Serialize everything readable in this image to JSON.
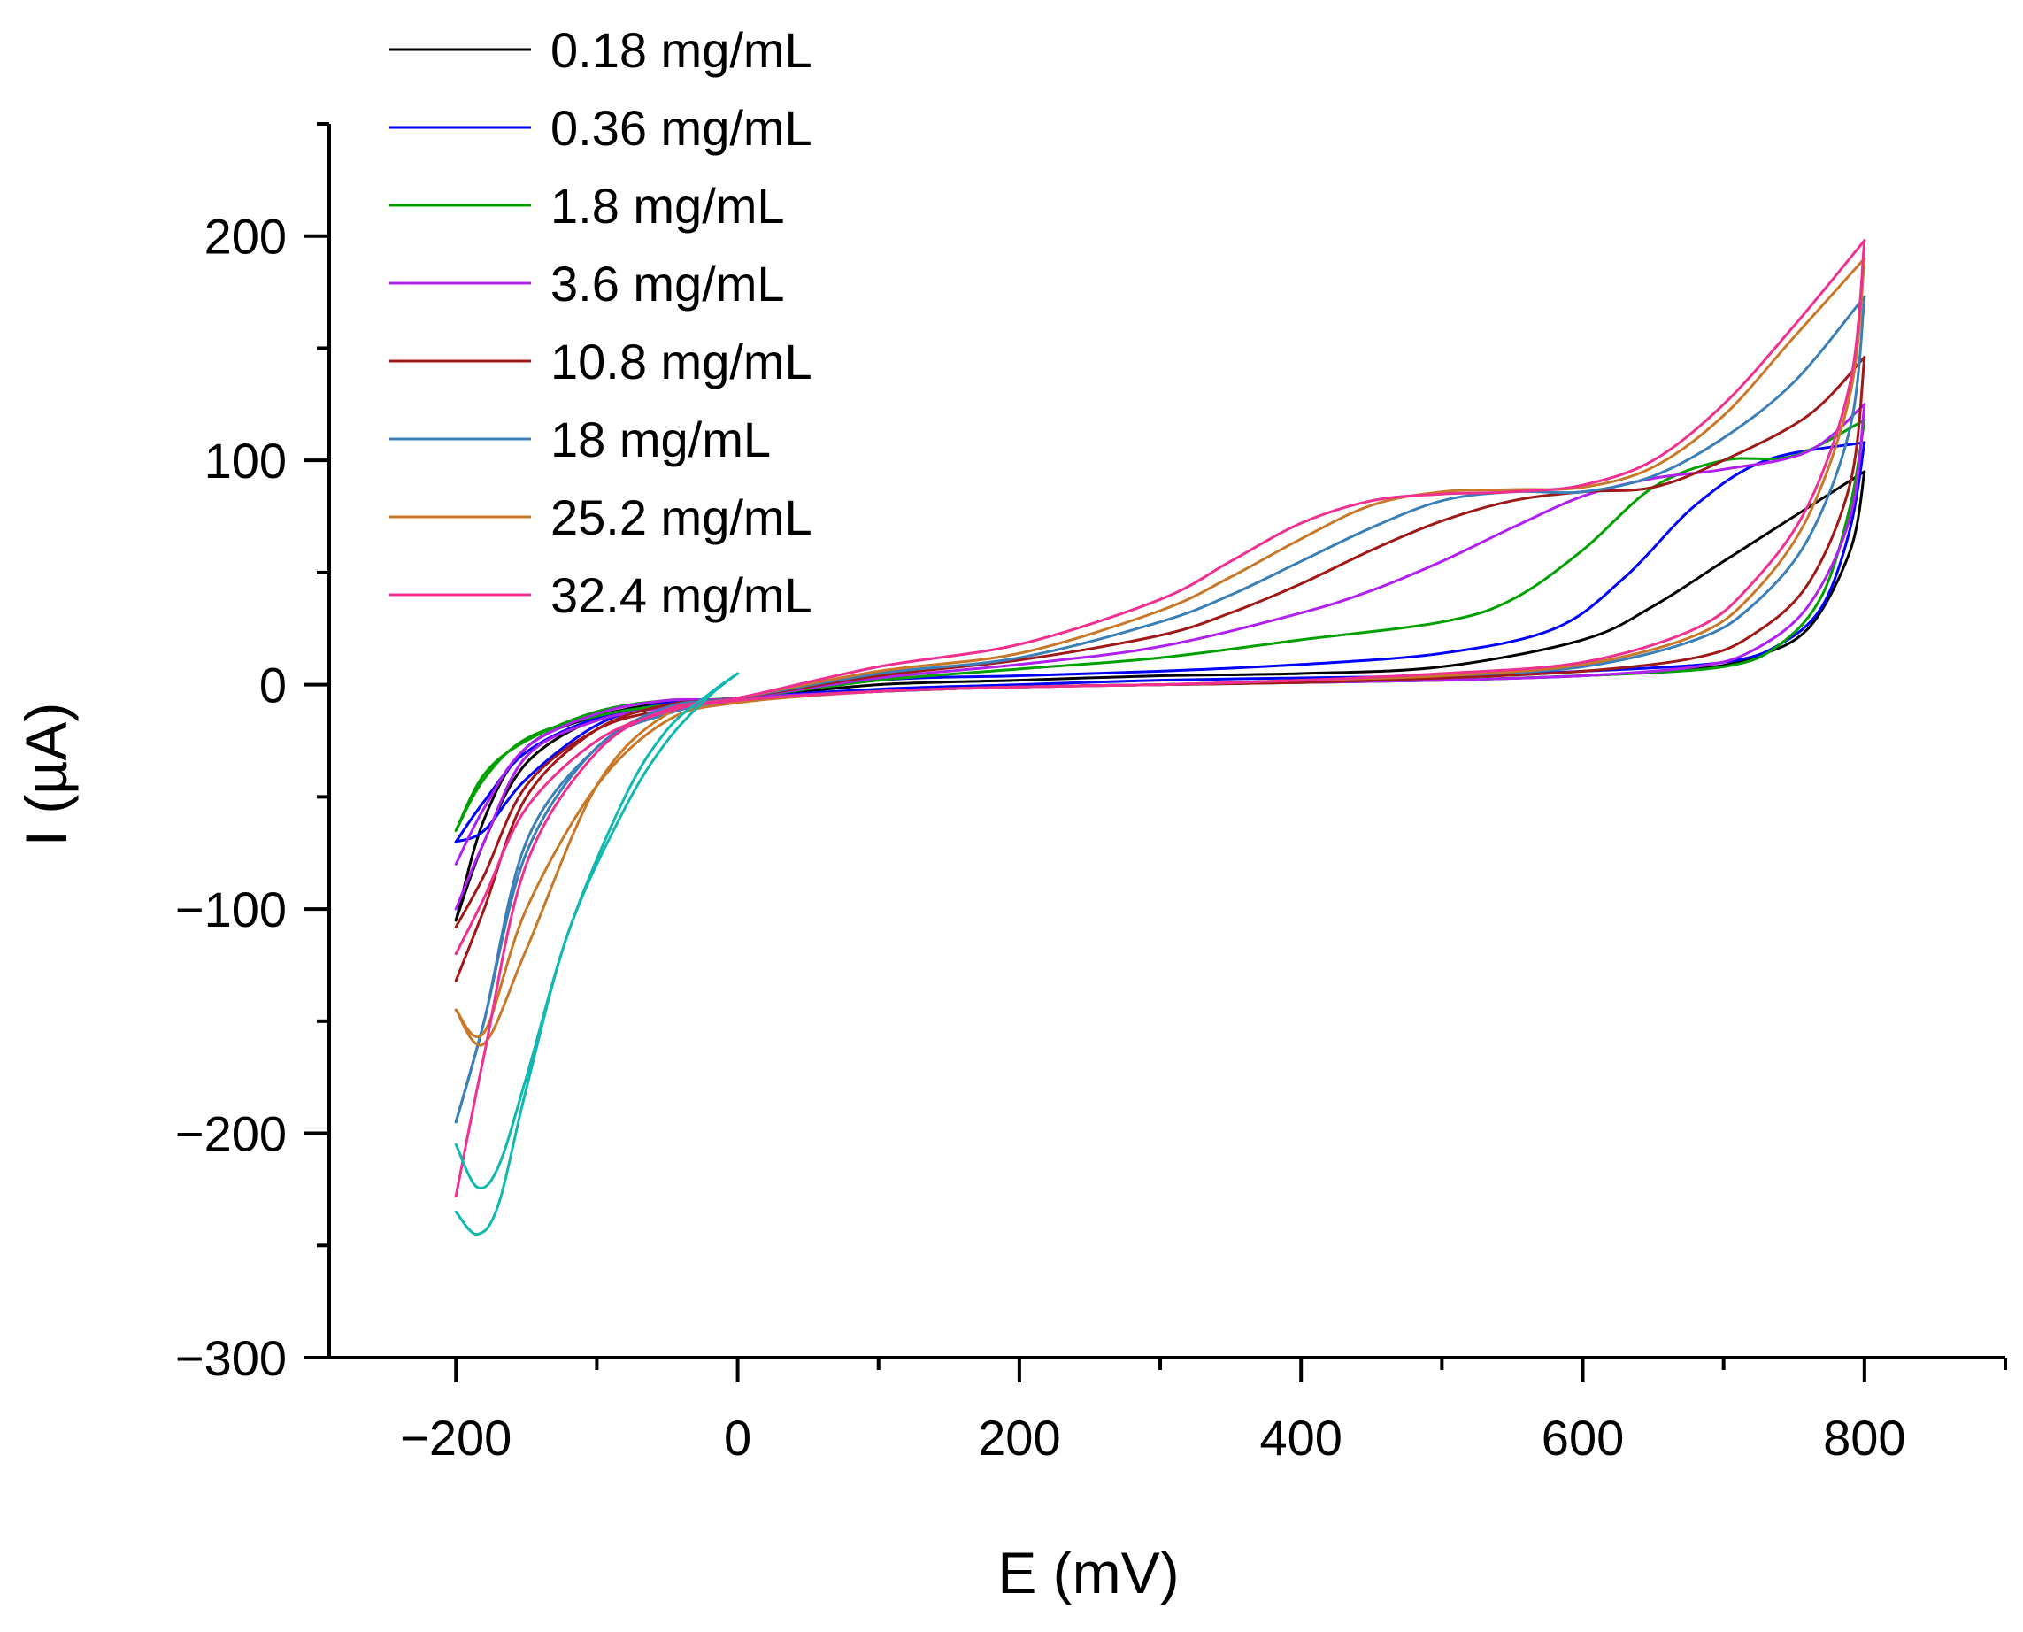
{
  "chart_data": {
    "type": "line",
    "title": "",
    "xlabel": "E (mV)",
    "ylabel": "I (µA)",
    "xlim": [
      -290,
      900
    ],
    "ylim": [
      -300,
      250
    ],
    "x_ticks": [
      -200,
      0,
      200,
      400,
      600,
      800
    ],
    "x_tick_labels": [
      "−200",
      "0",
      "200",
      "400",
      "600",
      "800"
    ],
    "y_ticks": [
      -300,
      -200,
      -100,
      0,
      100,
      200
    ],
    "y_tick_labels": [
      "−300",
      "−200",
      "−100",
      "0",
      "100",
      "200"
    ],
    "grid": false,
    "legend_position": "top-left",
    "series": [
      {
        "name": "0.18 mg/mL",
        "color": "#000000",
        "forward": [
          [
            -200,
            -105
          ],
          [
            -180,
            -70
          ],
          [
            -150,
            -35
          ],
          [
            -100,
            -15
          ],
          [
            -50,
            -8
          ],
          [
            0,
            -6
          ],
          [
            100,
            0
          ],
          [
            200,
            2
          ],
          [
            300,
            4
          ],
          [
            400,
            5
          ],
          [
            500,
            8
          ],
          [
            600,
            20
          ],
          [
            650,
            35
          ],
          [
            700,
            55
          ],
          [
            750,
            75
          ],
          [
            800,
            95
          ]
        ],
        "reverse": [
          [
            800,
            95
          ],
          [
            790,
            60
          ],
          [
            760,
            25
          ],
          [
            720,
            12
          ],
          [
            680,
            7
          ],
          [
            600,
            4
          ],
          [
            500,
            2
          ],
          [
            400,
            1
          ],
          [
            300,
            0
          ],
          [
            200,
            -1
          ],
          [
            100,
            -3
          ],
          [
            0,
            -6
          ],
          [
            -50,
            -9
          ],
          [
            -100,
            -14
          ],
          [
            -150,
            -28
          ],
          [
            -180,
            -60
          ],
          [
            -200,
            -105
          ]
        ]
      },
      {
        "name": "0.36 mg/mL",
        "color": "#0000ff",
        "forward": [
          [
            -200,
            -70
          ],
          [
            -180,
            -65
          ],
          [
            -150,
            -42
          ],
          [
            -100,
            -18
          ],
          [
            -50,
            -8
          ],
          [
            0,
            -6
          ],
          [
            100,
            2
          ],
          [
            200,
            4
          ],
          [
            300,
            6
          ],
          [
            400,
            9
          ],
          [
            500,
            14
          ],
          [
            580,
            25
          ],
          [
            630,
            48
          ],
          [
            680,
            80
          ],
          [
            730,
            100
          ],
          [
            800,
            108
          ]
        ],
        "reverse": [
          [
            800,
            108
          ],
          [
            790,
            70
          ],
          [
            770,
            35
          ],
          [
            740,
            18
          ],
          [
            700,
            10
          ],
          [
            600,
            6
          ],
          [
            500,
            4
          ],
          [
            400,
            3
          ],
          [
            300,
            2
          ],
          [
            200,
            0
          ],
          [
            100,
            -2
          ],
          [
            0,
            -6
          ],
          [
            -50,
            -10
          ],
          [
            -100,
            -15
          ],
          [
            -150,
            -30
          ],
          [
            -180,
            -52
          ],
          [
            -200,
            -70
          ]
        ]
      },
      {
        "name": "1.8 mg/mL",
        "color": "#00a000",
        "forward": [
          [
            -200,
            -65
          ],
          [
            -180,
            -40
          ],
          [
            -150,
            -25
          ],
          [
            -100,
            -12
          ],
          [
            -50,
            -7
          ],
          [
            0,
            -6
          ],
          [
            100,
            2
          ],
          [
            200,
            7
          ],
          [
            300,
            12
          ],
          [
            400,
            20
          ],
          [
            500,
            28
          ],
          [
            550,
            38
          ],
          [
            600,
            60
          ],
          [
            650,
            88
          ],
          [
            700,
            100
          ],
          [
            750,
            102
          ],
          [
            800,
            118
          ]
        ],
        "reverse": [
          [
            800,
            118
          ],
          [
            790,
            80
          ],
          [
            770,
            40
          ],
          [
            740,
            18
          ],
          [
            700,
            8
          ],
          [
            600,
            4
          ],
          [
            500,
            2
          ],
          [
            400,
            1
          ],
          [
            300,
            0
          ],
          [
            200,
            -1
          ],
          [
            100,
            -3
          ],
          [
            0,
            -6
          ],
          [
            -50,
            -9
          ],
          [
            -100,
            -14
          ],
          [
            -150,
            -24
          ],
          [
            -180,
            -42
          ],
          [
            -200,
            -65
          ]
        ]
      },
      {
        "name": "3.6 mg/mL",
        "color": "#b020f0",
        "forward": [
          [
            -200,
            -80
          ],
          [
            -180,
            -55
          ],
          [
            -150,
            -28
          ],
          [
            -100,
            -13
          ],
          [
            -50,
            -7
          ],
          [
            0,
            -6
          ],
          [
            100,
            3
          ],
          [
            200,
            9
          ],
          [
            300,
            17
          ],
          [
            400,
            32
          ],
          [
            450,
            42
          ],
          [
            500,
            55
          ],
          [
            550,
            70
          ],
          [
            600,
            84
          ],
          [
            650,
            92
          ],
          [
            700,
            96
          ],
          [
            760,
            104
          ],
          [
            800,
            125
          ]
        ],
        "reverse": [
          [
            800,
            125
          ],
          [
            790,
            75
          ],
          [
            760,
            35
          ],
          [
            720,
            15
          ],
          [
            680,
            8
          ],
          [
            600,
            4
          ],
          [
            500,
            2
          ],
          [
            400,
            1
          ],
          [
            300,
            0
          ],
          [
            200,
            -1
          ],
          [
            100,
            -3
          ],
          [
            0,
            -6
          ],
          [
            -50,
            -10
          ],
          [
            -100,
            -16
          ],
          [
            -150,
            -32
          ],
          [
            -180,
            -70
          ],
          [
            -200,
            -100
          ]
        ]
      },
      {
        "name": "10.8 mg/mL",
        "color": "#a01818",
        "forward": [
          [
            -200,
            -132
          ],
          [
            -180,
            -100
          ],
          [
            -150,
            -50
          ],
          [
            -100,
            -20
          ],
          [
            -50,
            -9
          ],
          [
            0,
            -6
          ],
          [
            100,
            4
          ],
          [
            200,
            11
          ],
          [
            300,
            22
          ],
          [
            350,
            32
          ],
          [
            400,
            45
          ],
          [
            450,
            60
          ],
          [
            500,
            73
          ],
          [
            550,
            82
          ],
          [
            600,
            86
          ],
          [
            650,
            88
          ],
          [
            700,
            100
          ],
          [
            760,
            120
          ],
          [
            800,
            146
          ]
        ],
        "reverse": [
          [
            800,
            146
          ],
          [
            790,
            90
          ],
          [
            760,
            45
          ],
          [
            720,
            22
          ],
          [
            680,
            12
          ],
          [
            600,
            6
          ],
          [
            500,
            3
          ],
          [
            400,
            1
          ],
          [
            300,
            0
          ],
          [
            200,
            -1
          ],
          [
            100,
            -3
          ],
          [
            0,
            -7
          ],
          [
            -50,
            -11
          ],
          [
            -100,
            -20
          ],
          [
            -150,
            -45
          ],
          [
            -180,
            -85
          ],
          [
            -200,
            -108
          ]
        ]
      },
      {
        "name": "18 mg/mL",
        "color": "#3a7fb8",
        "forward": [
          [
            -200,
            -195
          ],
          [
            -180,
            -150
          ],
          [
            -150,
            -70
          ],
          [
            -100,
            -28
          ],
          [
            -50,
            -10
          ],
          [
            0,
            -6
          ],
          [
            100,
            5
          ],
          [
            200,
            12
          ],
          [
            300,
            28
          ],
          [
            350,
            40
          ],
          [
            400,
            55
          ],
          [
            450,
            70
          ],
          [
            500,
            82
          ],
          [
            550,
            86
          ],
          [
            600,
            86
          ],
          [
            650,
            93
          ],
          [
            700,
            110
          ],
          [
            750,
            135
          ],
          [
            800,
            173
          ]
        ],
        "reverse": [
          [
            800,
            173
          ],
          [
            790,
            115
          ],
          [
            760,
            65
          ],
          [
            720,
            35
          ],
          [
            680,
            20
          ],
          [
            600,
            8
          ],
          [
            500,
            4
          ],
          [
            400,
            2
          ],
          [
            300,
            0
          ],
          [
            200,
            -1
          ],
          [
            100,
            -3
          ],
          [
            0,
            -7
          ],
          [
            -50,
            -13
          ],
          [
            -100,
            -28
          ],
          [
            -150,
            -75
          ],
          [
            -180,
            -150
          ],
          [
            -200,
            -195
          ]
        ]
      },
      {
        "name": "25.2 mg/mL",
        "color": "#c87828",
        "forward": [
          [
            -200,
            -145
          ],
          [
            -180,
            -160
          ],
          [
            -150,
            -118
          ],
          [
            -100,
            -45
          ],
          [
            -50,
            -13
          ],
          [
            0,
            -6
          ],
          [
            100,
            6
          ],
          [
            200,
            14
          ],
          [
            300,
            33
          ],
          [
            350,
            48
          ],
          [
            400,
            65
          ],
          [
            450,
            80
          ],
          [
            500,
            86
          ],
          [
            550,
            87
          ],
          [
            600,
            88
          ],
          [
            650,
            97
          ],
          [
            700,
            120
          ],
          [
            750,
            155
          ],
          [
            800,
            190
          ]
        ],
        "reverse": [
          [
            800,
            190
          ],
          [
            790,
            130
          ],
          [
            760,
            75
          ],
          [
            720,
            40
          ],
          [
            680,
            22
          ],
          [
            600,
            9
          ],
          [
            500,
            4
          ],
          [
            400,
            2
          ],
          [
            300,
            0
          ],
          [
            200,
            -1
          ],
          [
            100,
            -3
          ],
          [
            0,
            -8
          ],
          [
            -50,
            -16
          ],
          [
            -100,
            -45
          ],
          [
            -150,
            -100
          ],
          [
            -180,
            -155
          ],
          [
            -200,
            -145
          ]
        ]
      },
      {
        "name": "32.4 mg/mL",
        "color": "#f03090",
        "forward": [
          [
            -200,
            -228
          ],
          [
            -180,
            -165
          ],
          [
            -150,
            -80
          ],
          [
            -100,
            -30
          ],
          [
            -50,
            -11
          ],
          [
            0,
            -6
          ],
          [
            100,
            8
          ],
          [
            200,
            18
          ],
          [
            300,
            38
          ],
          [
            350,
            55
          ],
          [
            400,
            72
          ],
          [
            450,
            82
          ],
          [
            500,
            85
          ],
          [
            550,
            86
          ],
          [
            600,
            89
          ],
          [
            650,
            100
          ],
          [
            700,
            125
          ],
          [
            750,
            160
          ],
          [
            800,
            198
          ]
        ],
        "reverse": [
          [
            800,
            198
          ],
          [
            790,
            135
          ],
          [
            760,
            80
          ],
          [
            720,
            45
          ],
          [
            680,
            25
          ],
          [
            600,
            10
          ],
          [
            500,
            5
          ],
          [
            400,
            2
          ],
          [
            300,
            0
          ],
          [
            200,
            -1
          ],
          [
            100,
            -3
          ],
          [
            0,
            -7
          ],
          [
            -50,
            -12
          ],
          [
            -100,
            -25
          ],
          [
            -150,
            -55
          ],
          [
            -180,
            -95
          ],
          [
            -200,
            -120
          ]
        ]
      },
      {
        "name": "",
        "color": "#10b8b0",
        "forward": [
          [
            -200,
            -235
          ],
          [
            -185,
            -245
          ],
          [
            -170,
            -232
          ],
          [
            -150,
            -180
          ],
          [
            -120,
            -110
          ],
          [
            -80,
            -55
          ],
          [
            -50,
            -25
          ],
          [
            -20,
            -5
          ],
          [
            0,
            5
          ]
        ],
        "reverse": [
          [
            0,
            5
          ],
          [
            -20,
            -4
          ],
          [
            -50,
            -20
          ],
          [
            -80,
            -50
          ],
          [
            -120,
            -110
          ],
          [
            -150,
            -175
          ],
          [
            -170,
            -215
          ],
          [
            -185,
            -224
          ],
          [
            -200,
            -205
          ]
        ]
      }
    ]
  }
}
